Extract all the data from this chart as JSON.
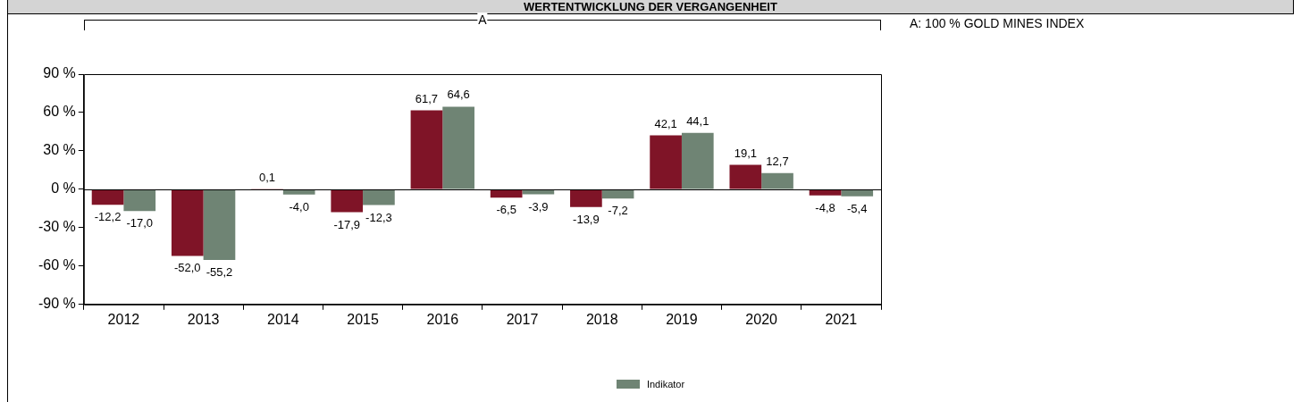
{
  "chart_data": {
    "type": "bar",
    "title": "WERTENTWICKLUNG DER VERGANGENHEIT",
    "categories": [
      "2012",
      "2013",
      "2014",
      "2015",
      "2016",
      "2017",
      "2018",
      "2019",
      "2020",
      "2021"
    ],
    "series": [
      {
        "color": "#7f1427",
        "values": [
          -12.2,
          -52.0,
          0.1,
          -17.9,
          61.7,
          -6.5,
          -13.9,
          42.1,
          19.1,
          -4.8
        ],
        "value_labels": [
          "-12,2",
          "-52,0",
          "0,1",
          "-17,9",
          "61,7",
          "-6,5",
          "-13,9",
          "42,1",
          "19,1",
          "-4,8"
        ]
      },
      {
        "name": "Indikator",
        "color": "#6f8474",
        "values": [
          -17.0,
          -55.2,
          -4.0,
          -12.3,
          64.6,
          -3.9,
          -7.2,
          44.1,
          12.7,
          -5.4
        ],
        "value_labels": [
          "-17,0",
          "-55,2",
          "-4,0",
          "-12,3",
          "64,6",
          "-3,9",
          "-7,2",
          "44,1",
          "12,7",
          "-5,4"
        ]
      }
    ],
    "ylim": [
      -90,
      90
    ],
    "yticks": [
      {
        "value": -90,
        "label": "-90 %"
      },
      {
        "value": -60,
        "label": "-60 %"
      },
      {
        "value": -30,
        "label": "-30 %"
      },
      {
        "value": 0,
        "label": "0 %"
      },
      {
        "value": 30,
        "label": "30 %"
      },
      {
        "value": 60,
        "label": "60 %"
      },
      {
        "value": 90,
        "label": "90 %"
      }
    ],
    "ref_lines": [
      {
        "axis": "y",
        "value": 0,
        "color": "#000000"
      }
    ],
    "grid": false,
    "legend": "bottom",
    "annotations": [
      "A",
      "A: 100 % GOLD MINES INDEX"
    ]
  }
}
